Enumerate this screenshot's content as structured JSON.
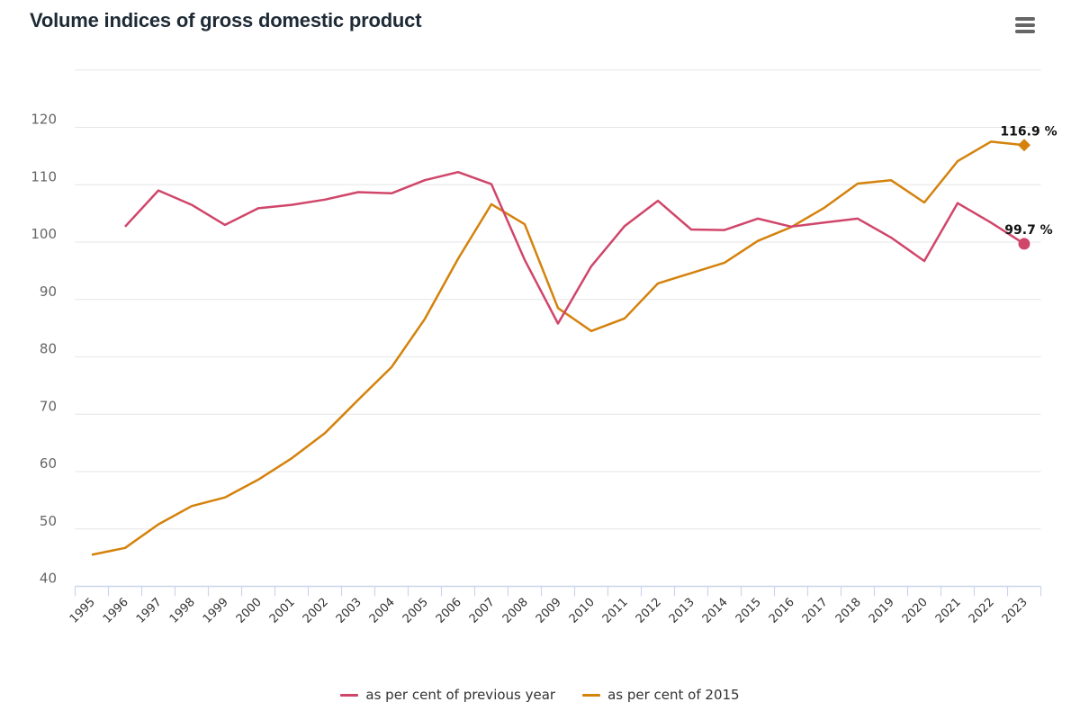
{
  "chart_data": {
    "type": "line",
    "title": "Volume indices of gross domestic product",
    "xlabel": "",
    "ylabel": "",
    "categories": [
      "1995",
      "1996",
      "1997",
      "1998",
      "1999",
      "2000",
      "2001",
      "2002",
      "2003",
      "2004",
      "2005",
      "2006",
      "2007",
      "2008",
      "2009",
      "2010",
      "2011",
      "2012",
      "2013",
      "2014",
      "2015",
      "2016",
      "2017",
      "2018",
      "2019",
      "2020",
      "2021",
      "2022",
      "2023"
    ],
    "yticks": [
      "40",
      "50",
      "60",
      "70",
      "80",
      "90",
      "100",
      "110",
      "120"
    ],
    "ylim": [
      40,
      130
    ],
    "grid": true,
    "legend_position": "bottom-center",
    "series": [
      {
        "name": "as per cent of previous year",
        "color": "#d0466a",
        "marker": "circle",
        "values": [
          null,
          102.7,
          109.0,
          106.5,
          103.0,
          105.9,
          106.5,
          107.4,
          108.7,
          108.5,
          110.8,
          112.2,
          110.1,
          96.9,
          85.8,
          95.8,
          102.8,
          107.2,
          102.2,
          102.1,
          104.1,
          102.7,
          103.4,
          104.1,
          100.8,
          96.7,
          106.8,
          103.4,
          99.7
        ],
        "last_label": "99.7 %"
      },
      {
        "name": "as per cent of 2015",
        "color": "#d4820c",
        "marker": "diamond",
        "values": [
          45.5,
          46.7,
          50.8,
          54.0,
          55.5,
          58.6,
          62.3,
          66.7,
          72.5,
          78.2,
          86.6,
          97.1,
          106.6,
          103.1,
          88.5,
          84.5,
          86.7,
          92.8,
          94.6,
          96.4,
          100.2,
          102.6,
          106.0,
          110.2,
          110.8,
          106.9,
          114.1,
          117.5,
          116.9
        ],
        "last_label": "116.9 %"
      }
    ]
  },
  "header": {
    "title": "Volume indices of gross domestic product",
    "menu_icon": "hamburger-menu-icon"
  },
  "legend": {
    "items": [
      {
        "label": "as per cent of previous year",
        "color": "#d0466a"
      },
      {
        "label": "as per cent of 2015",
        "color": "#d4820c"
      }
    ]
  }
}
